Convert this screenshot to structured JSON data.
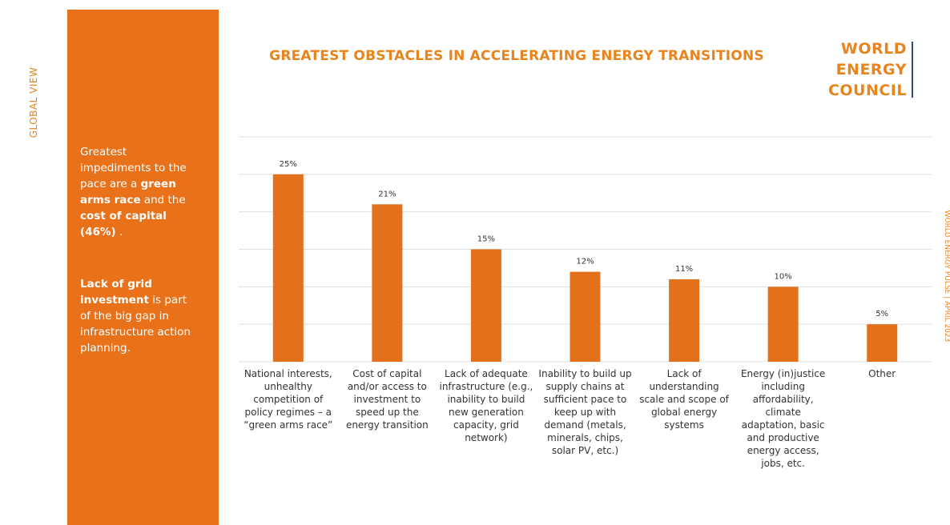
{
  "side_label": "GLOBAL VIEW",
  "footer_label": "WORLD ENERGY PULSE | APRIL 2023",
  "logo": [
    "WORLD",
    "ENERGY",
    "COUNCIL"
  ],
  "sidebar": {
    "paragraph_1": [
      "Greatest impediments to the pace are a ",
      "green arms race",
      " and the ",
      "cost of capital (46%)",
      " ."
    ],
    "paragraph_2": [
      "Lack of grid investment",
      " is part of the big gap in infrastructure action planning."
    ]
  },
  "chart_data": {
    "type": "bar",
    "title": "GREATEST OBSTACLES IN ACCELERATING ENERGY TRANSITIONS",
    "categories": [
      "National interests,\nunhealthy\ncompetition of\npolicy regimes – a\n“green arms race”",
      "Cost of capital\nand/or access to\ninvestment to\nspeed up the\nenergy transition",
      "Lack of adequate\ninfrastructure (e.g.,\ninability to build\nnew generation\ncapacity, grid\nnetwork)",
      "Inability to build up\nsupply chains at\nsufficient pace to\nkeep up with\ndemand (metals,\nminerals, chips,\nsolar PV, etc.)",
      "Lack of\nunderstanding\nscale and scope of\nglobal energy\nsystems",
      "Energy (in)justice\nincluding\naffordability,\nclimate\nadaptation, basic\nand productive\nenergy access,\njobs, etc.",
      "Other"
    ],
    "values": [
      25,
      21,
      15,
      12,
      11,
      10,
      5
    ],
    "value_labels": [
      "25%",
      "21%",
      "15%",
      "12%",
      "11%",
      "10%",
      "5%"
    ],
    "color": "#e3701a",
    "ylim": [
      0,
      30
    ],
    "yticks": [
      0,
      5,
      10,
      15,
      20,
      25,
      30
    ],
    "grid": true
  }
}
